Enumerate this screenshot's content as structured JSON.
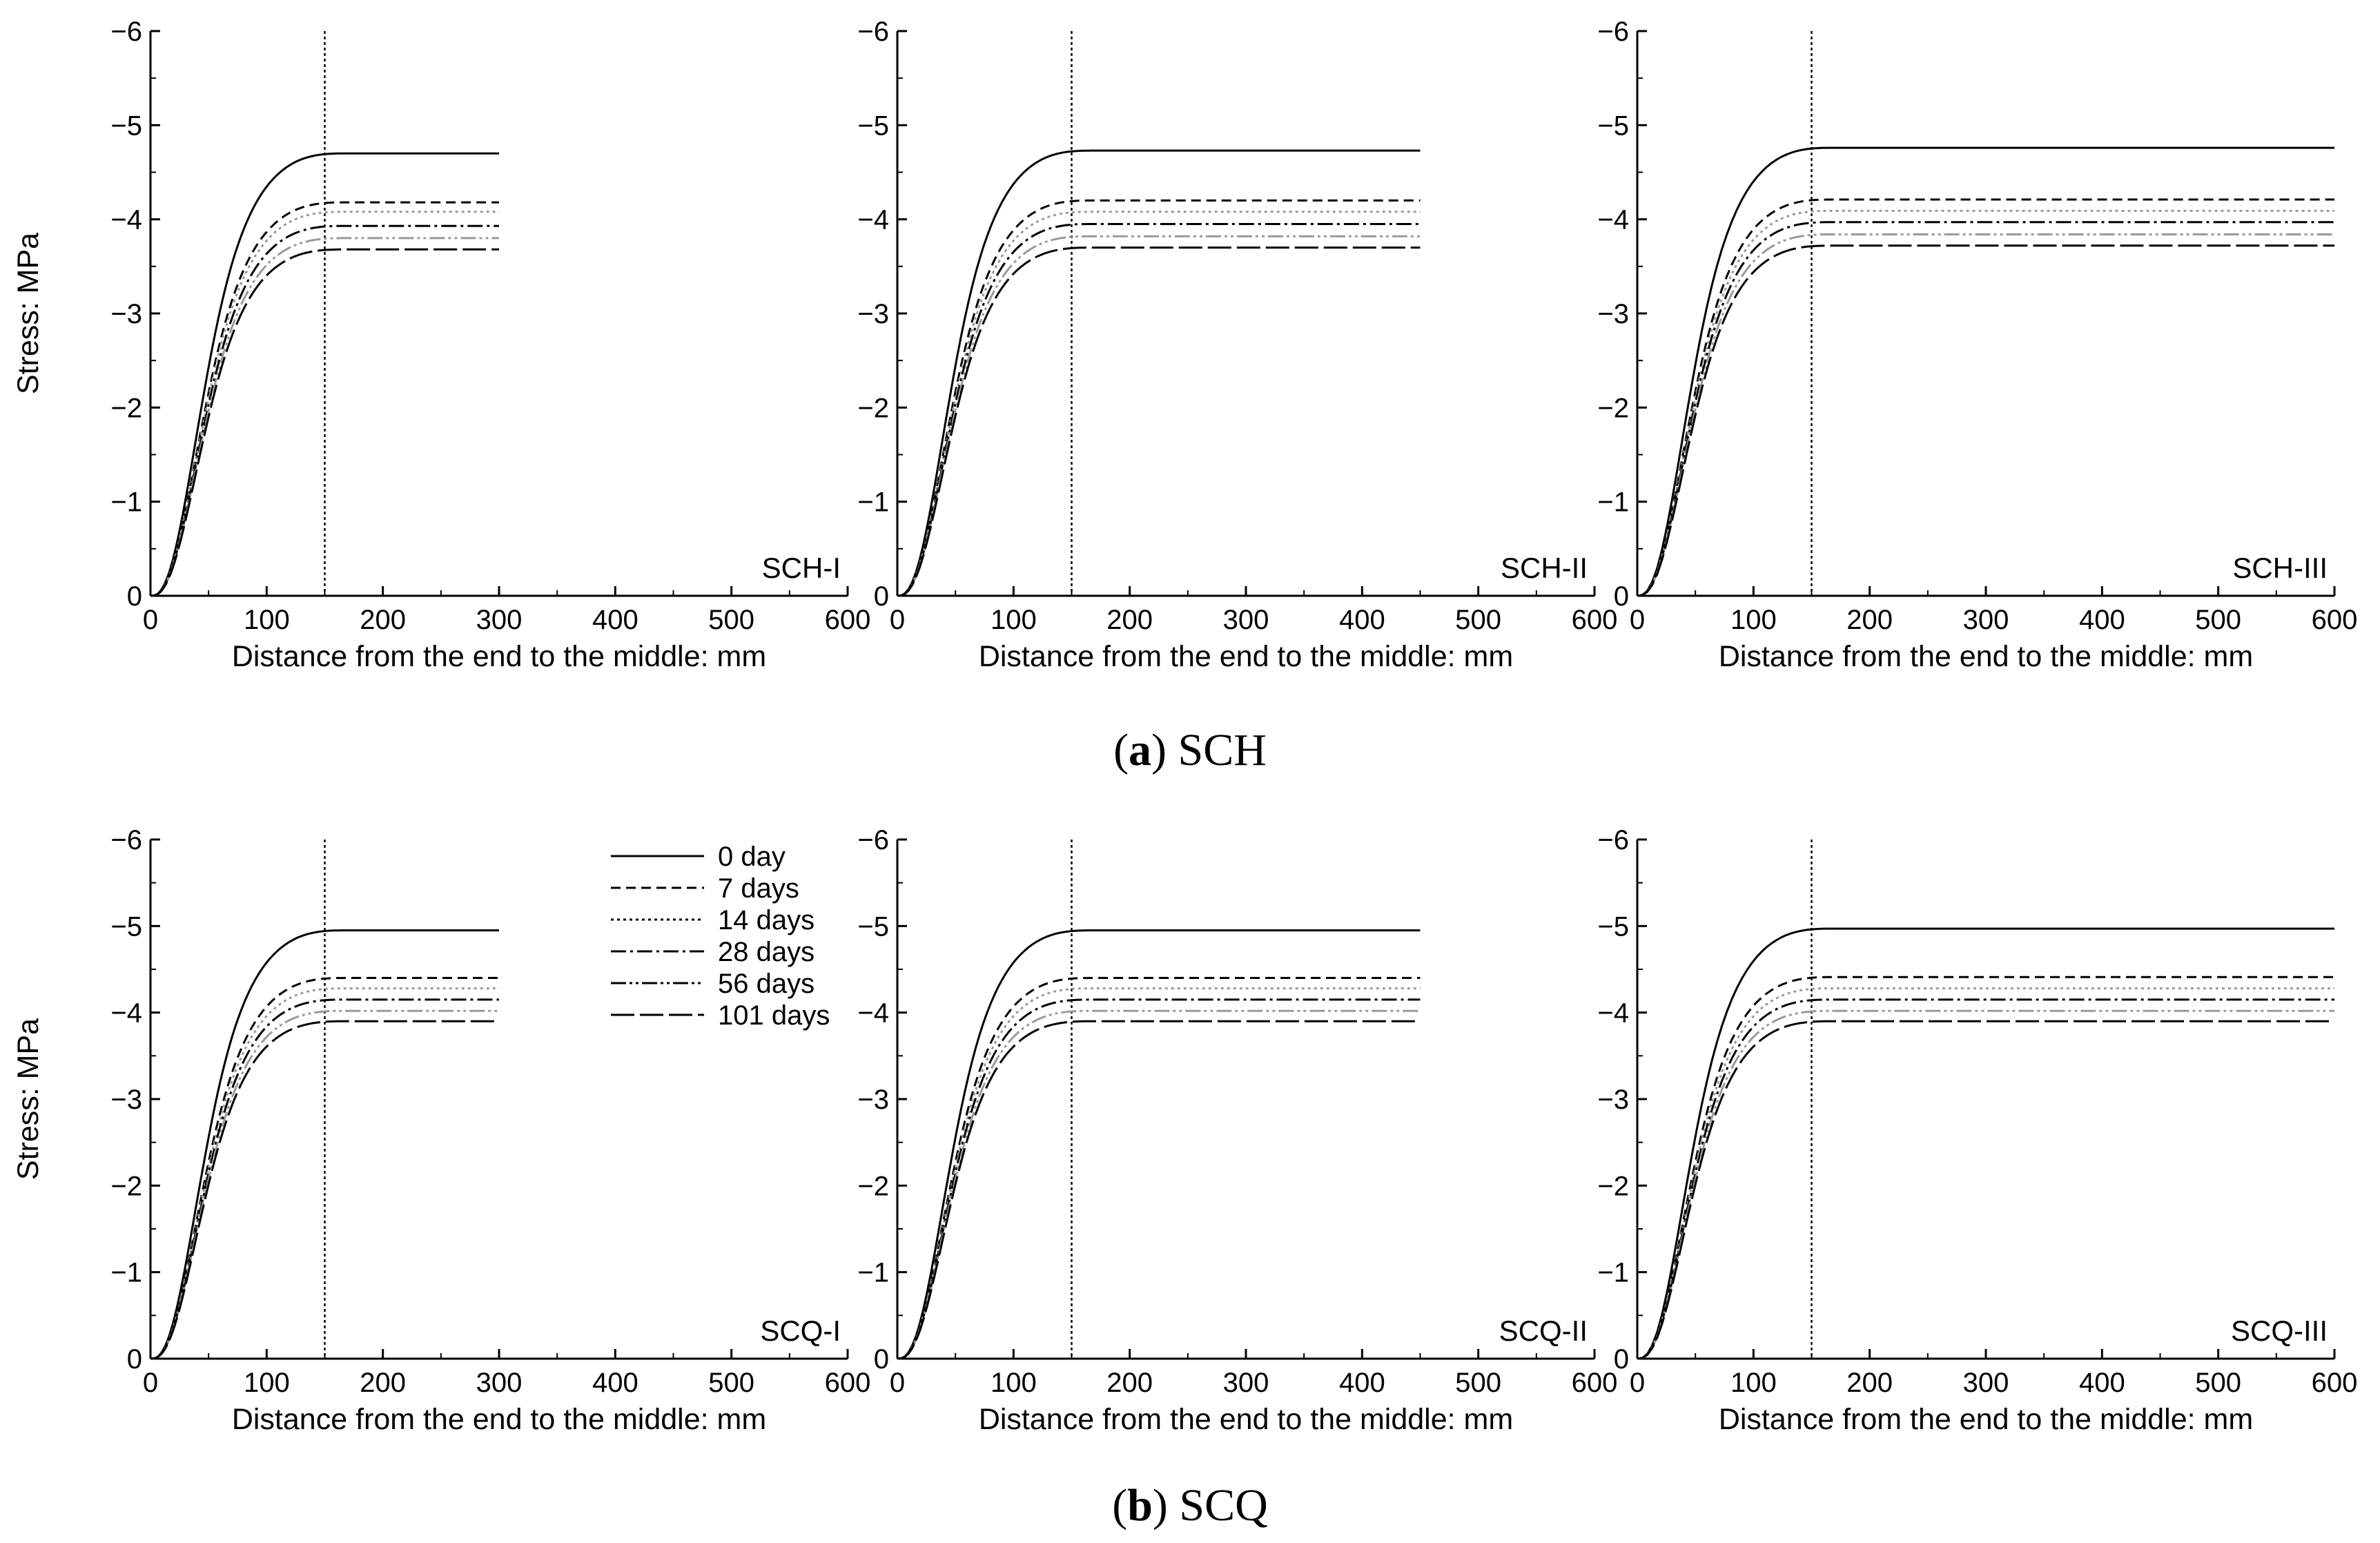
{
  "chart_data": [
    {
      "type": "line",
      "group": "a",
      "panel_label": "SCH-I",
      "xlabel": "Distance from the end to the middle: mm",
      "ylabel": "Stress: MPa",
      "show_ylabel": true,
      "xlim": [
        0,
        600
      ],
      "ylim": [
        0,
        -6
      ],
      "x_ticks": [
        0,
        100,
        200,
        300,
        400,
        500,
        600
      ],
      "x_tick_labels": [
        "0",
        "100",
        "200",
        "300",
        "400",
        "500",
        "600"
      ],
      "y_ticks": [
        0,
        -1,
        -2,
        -3,
        -4,
        -5,
        -6
      ],
      "y_tick_labels": [
        "0",
        "−1",
        "−2",
        "−3",
        "−4",
        "−5",
        "−6"
      ],
      "vline_x": 150,
      "x_end": 300,
      "series": [
        {
          "name": "0 day",
          "plateau": -4.7
        },
        {
          "name": "7 days",
          "plateau": -4.18
        },
        {
          "name": "14 days",
          "plateau": -4.08
        },
        {
          "name": "28 days",
          "plateau": -3.93
        },
        {
          "name": "56 days",
          "plateau": -3.8
        },
        {
          "name": "101 days",
          "plateau": -3.68
        }
      ]
    },
    {
      "type": "line",
      "group": "a",
      "panel_label": "SCH-II",
      "xlabel": "Distance from the end to the middle: mm",
      "ylabel": "Stress: MPa",
      "show_ylabel": false,
      "xlim": [
        0,
        600
      ],
      "ylim": [
        0,
        -6
      ],
      "x_ticks": [
        0,
        100,
        200,
        300,
        400,
        500,
        600
      ],
      "x_tick_labels": [
        "0",
        "100",
        "200",
        "300",
        "400",
        "500",
        "600"
      ],
      "y_ticks": [
        0,
        -1,
        -2,
        -3,
        -4,
        -5,
        -6
      ],
      "y_tick_labels": [
        "0",
        "−1",
        "−2",
        "−3",
        "−4",
        "−5",
        "−6"
      ],
      "vline_x": 150,
      "x_end": 450,
      "series": [
        {
          "name": "0 day",
          "plateau": -4.73
        },
        {
          "name": "7 days",
          "plateau": -4.2
        },
        {
          "name": "14 days",
          "plateau": -4.08
        },
        {
          "name": "28 days",
          "plateau": -3.95
        },
        {
          "name": "56 days",
          "plateau": -3.82
        },
        {
          "name": "101 days",
          "plateau": -3.7
        }
      ]
    },
    {
      "type": "line",
      "group": "a",
      "panel_label": "SCH-III",
      "xlabel": "Distance from the end to the middle: mm",
      "ylabel": "Stress: MPa",
      "show_ylabel": false,
      "xlim": [
        0,
        600
      ],
      "ylim": [
        0,
        -6
      ],
      "x_ticks": [
        0,
        100,
        200,
        300,
        400,
        500,
        600
      ],
      "x_tick_labels": [
        "0",
        "100",
        "200",
        "300",
        "400",
        "500",
        "600"
      ],
      "y_ticks": [
        0,
        -1,
        -2,
        -3,
        -4,
        -5,
        -6
      ],
      "y_tick_labels": [
        "0",
        "−1",
        "−2",
        "−3",
        "−4",
        "−5",
        "−6"
      ],
      "vline_x": 150,
      "x_end": 600,
      "series": [
        {
          "name": "0 day",
          "plateau": -4.76
        },
        {
          "name": "7 days",
          "plateau": -4.21
        },
        {
          "name": "14 days",
          "plateau": -4.09
        },
        {
          "name": "28 days",
          "plateau": -3.97
        },
        {
          "name": "56 days",
          "plateau": -3.84
        },
        {
          "name": "101 days",
          "plateau": -3.72
        }
      ]
    },
    {
      "type": "line",
      "group": "b",
      "panel_label": "SCQ-I",
      "xlabel": "Distance from the end to the middle: mm",
      "ylabel": "Stress: MPa",
      "show_ylabel": true,
      "xlim": [
        0,
        600
      ],
      "ylim": [
        0,
        -6
      ],
      "x_ticks": [
        0,
        100,
        200,
        300,
        400,
        500,
        600
      ],
      "x_tick_labels": [
        "0",
        "100",
        "200",
        "300",
        "400",
        "500",
        "600"
      ],
      "y_ticks": [
        0,
        -1,
        -2,
        -3,
        -4,
        -5,
        -6
      ],
      "y_tick_labels": [
        "0",
        "−1",
        "−2",
        "−3",
        "−4",
        "−5",
        "−6"
      ],
      "vline_x": 150,
      "x_end": 300,
      "series": [
        {
          "name": "0 day",
          "plateau": -4.95
        },
        {
          "name": "7 days",
          "plateau": -4.4
        },
        {
          "name": "14 days",
          "plateau": -4.28
        },
        {
          "name": "28 days",
          "plateau": -4.15
        },
        {
          "name": "56 days",
          "plateau": -4.02
        },
        {
          "name": "101 days",
          "plateau": -3.9
        }
      ]
    },
    {
      "type": "line",
      "group": "b",
      "panel_label": "SCQ-II",
      "xlabel": "Distance from the end to the middle: mm",
      "ylabel": "Stress: MPa",
      "show_ylabel": false,
      "xlim": [
        0,
        600
      ],
      "ylim": [
        0,
        -6
      ],
      "x_ticks": [
        0,
        100,
        200,
        300,
        400,
        500,
        600
      ],
      "x_tick_labels": [
        "0",
        "100",
        "200",
        "300",
        "400",
        "500",
        "600"
      ],
      "y_ticks": [
        0,
        -1,
        -2,
        -3,
        -4,
        -5,
        -6
      ],
      "y_tick_labels": [
        "0",
        "−1",
        "−2",
        "−3",
        "−4",
        "−5",
        "−6"
      ],
      "vline_x": 150,
      "x_end": 450,
      "series": [
        {
          "name": "0 day",
          "plateau": -4.95
        },
        {
          "name": "7 days",
          "plateau": -4.4
        },
        {
          "name": "14 days",
          "plateau": -4.28
        },
        {
          "name": "28 days",
          "plateau": -4.15
        },
        {
          "name": "56 days",
          "plateau": -4.02
        },
        {
          "name": "101 days",
          "plateau": -3.9
        }
      ]
    },
    {
      "type": "line",
      "group": "b",
      "panel_label": "SCQ-III",
      "xlabel": "Distance from the end to the middle: mm",
      "ylabel": "Stress: MPa",
      "show_ylabel": false,
      "xlim": [
        0,
        600
      ],
      "ylim": [
        0,
        -6
      ],
      "x_ticks": [
        0,
        100,
        200,
        300,
        400,
        500,
        600
      ],
      "x_tick_labels": [
        "0",
        "100",
        "200",
        "300",
        "400",
        "500",
        "600"
      ],
      "y_ticks": [
        0,
        -1,
        -2,
        -3,
        -4,
        -5,
        -6
      ],
      "y_tick_labels": [
        "0",
        "−1",
        "−2",
        "−3",
        "−4",
        "−5",
        "−6"
      ],
      "vline_x": 150,
      "x_end": 600,
      "series": [
        {
          "name": "0 day",
          "plateau": -4.97
        },
        {
          "name": "7 days",
          "plateau": -4.41
        },
        {
          "name": "14 days",
          "plateau": -4.28
        },
        {
          "name": "28 days",
          "plateau": -4.15
        },
        {
          "name": "56 days",
          "plateau": -4.02
        },
        {
          "name": "101 days",
          "plateau": -3.9
        }
      ]
    }
  ],
  "legend": {
    "entries": [
      {
        "name": "0 day",
        "style": "solid"
      },
      {
        "name": "7 days",
        "style": "dash"
      },
      {
        "name": "14 days",
        "style": "dot"
      },
      {
        "name": "28 days",
        "style": "dashdot"
      },
      {
        "name": "56 days",
        "style": "dashdotdot"
      },
      {
        "name": "101 days",
        "style": "longdash"
      }
    ]
  },
  "captions": {
    "a": {
      "letter": "a",
      "text": " SCH"
    },
    "b": {
      "letter": "b",
      "text": " SCQ"
    }
  },
  "colors": {
    "line": "#000000",
    "gray": "#9a9a9a"
  }
}
